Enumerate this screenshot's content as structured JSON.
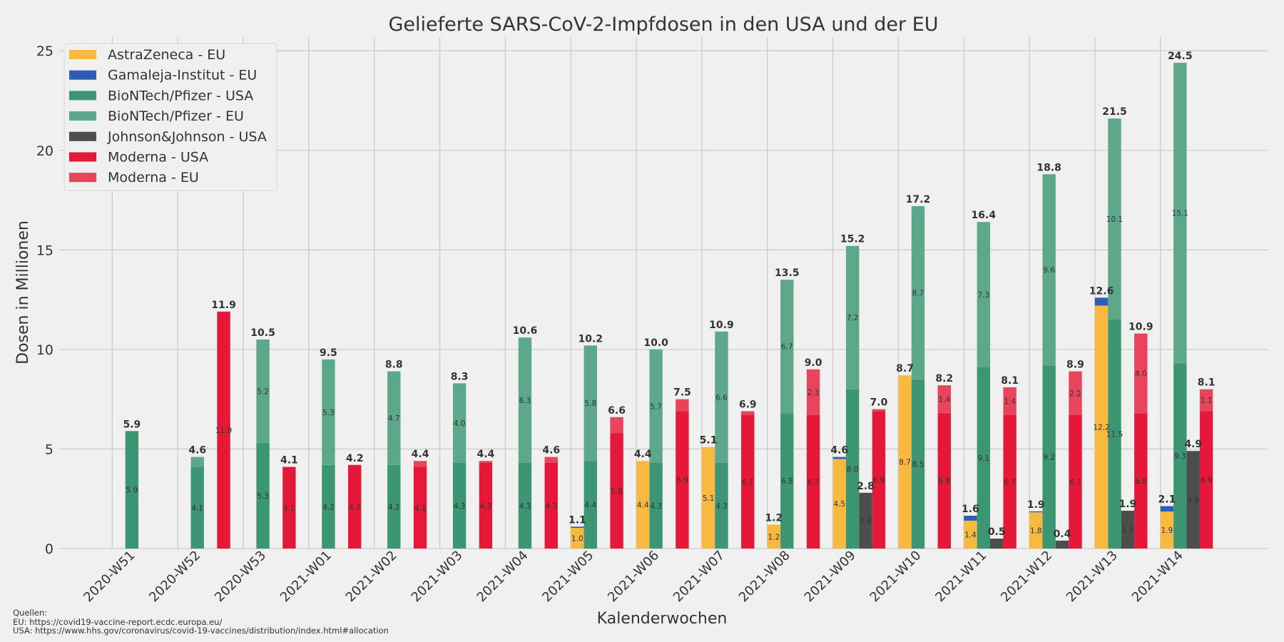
{
  "chart_data": {
    "type": "bar",
    "title": "Gelieferte SARS-CoV-2-Impfdosen in den USA und der EU",
    "xlabel": "Kalenderwochen",
    "ylabel": "Dosen in Millionen",
    "ylim": [
      0,
      25
    ],
    "yticks": [
      "0",
      "5",
      "10",
      "15",
      "20",
      "25"
    ],
    "grid": true,
    "legend_position": "top-left",
    "categories": [
      "2020-W51",
      "2020-W52",
      "2020-W53",
      "2021-W01",
      "2021-W02",
      "2021-W03",
      "2021-W04",
      "2021-W05",
      "2021-W06",
      "2021-W07",
      "2021-W08",
      "2021-W09",
      "2021-W10",
      "2021-W11",
      "2021-W12",
      "2021-W13",
      "2021-W14"
    ],
    "series": [
      {
        "name": "AstraZeneca - EU",
        "color": "#f8b940",
        "stack": "AstraZeneca/Gamaleja",
        "values": [
          0,
          0,
          0,
          0,
          0,
          0,
          0,
          1.04,
          4.4,
          5.1,
          1.2,
          4.5,
          8.7,
          1.4,
          1.82,
          12.2,
          1.86
        ]
      },
      {
        "name": "Gamaleja-Institut - EU",
        "color": "#2f5db5",
        "stack": "AstraZeneca/Gamaleja",
        "values": [
          0,
          0,
          0,
          0,
          0,
          0,
          0,
          0.06,
          0,
          0,
          0,
          0.1,
          0,
          0.25,
          0.05,
          0.4,
          0.27
        ]
      },
      {
        "name": "BioNTech/Pfizer - USA",
        "color": "#3c9673",
        "stack": "BioNTech/Pfizer",
        "values": [
          5.9,
          4.1,
          5.3,
          4.2,
          4.2,
          4.3,
          4.3,
          4.4,
          4.3,
          4.3,
          6.8,
          8.0,
          8.5,
          9.1,
          9.2,
          11.5,
          9.3
        ]
      },
      {
        "name": "BioNTech/Pfizer - EU",
        "color": "#5da88a",
        "stack": "BioNTech/Pfizer",
        "values": [
          0,
          0.5,
          5.2,
          5.3,
          4.7,
          4.0,
          6.3,
          5.8,
          5.7,
          6.6,
          6.7,
          7.2,
          8.7,
          7.3,
          9.6,
          10.1,
          15.1
        ]
      },
      {
        "name": "Johnson&Johnson - USA",
        "color": "#4d4d4d",
        "stack": "Johnson&Johnson",
        "values": [
          0,
          0,
          0,
          0,
          0,
          0,
          0,
          0,
          0,
          0,
          0,
          2.8,
          0,
          0.5,
          0.4,
          1.9,
          4.9
        ]
      },
      {
        "name": "Moderna - USA",
        "color": "#e61839",
        "stack": "Moderna",
        "values": [
          0,
          11.9,
          4.1,
          4.2,
          4.1,
          4.3,
          4.3,
          5.8,
          6.9,
          6.7,
          6.7,
          6.9,
          6.8,
          6.7,
          6.7,
          6.8,
          6.9
        ]
      },
      {
        "name": "Moderna - EU",
        "color": "#e8445c",
        "stack": "Moderna",
        "values": [
          0,
          0,
          0,
          0,
          0.3,
          0.1,
          0.3,
          0.8,
          0.6,
          0.2,
          2.3,
          0.1,
          1.4,
          1.4,
          2.2,
          4.0,
          1.1
        ]
      }
    ],
    "totals": {
      "AstraZeneca/Gamaleja": [
        null,
        null,
        null,
        null,
        null,
        null,
        null,
        "1.1",
        "4.4",
        "5.1",
        "1.2",
        "4.6",
        "8.7",
        "1.6",
        "1.9",
        "12.6",
        "2.1"
      ],
      "BioNTech/Pfizer": [
        "5.9",
        "4.6",
        "10.5",
        "9.5",
        "8.8",
        "8.3",
        "10.6",
        "10.2",
        "10.0",
        "10.9",
        "13.5",
        "15.2",
        "17.2",
        "16.4",
        "18.8",
        "21.5",
        "24.5"
      ],
      "Johnson&Johnson": [
        null,
        null,
        null,
        null,
        null,
        null,
        null,
        null,
        null,
        null,
        null,
        "2.8",
        null,
        "0.5",
        "0.4",
        "1.9",
        "4.9"
      ],
      "Moderna": [
        null,
        "11.9",
        "4.1",
        "4.2",
        "4.4",
        "4.4",
        "4.6",
        "6.6",
        "7.5",
        "6.9",
        "9.0",
        "7.0",
        "8.2",
        "8.1",
        "8.9",
        "10.9",
        "8.1"
      ]
    }
  },
  "sources": {
    "heading": "Quellen:",
    "eu": "EU: https://covid19-vaccine-report.ecdc.europa.eu/",
    "usa": "USA: https://www.hhs.gov/coronavirus/covid-19-vaccines/distribution/index.html#allocation"
  },
  "colors": {
    "background": "#f0f0f0",
    "grid": "#cbcbcb",
    "text": "#333333"
  }
}
